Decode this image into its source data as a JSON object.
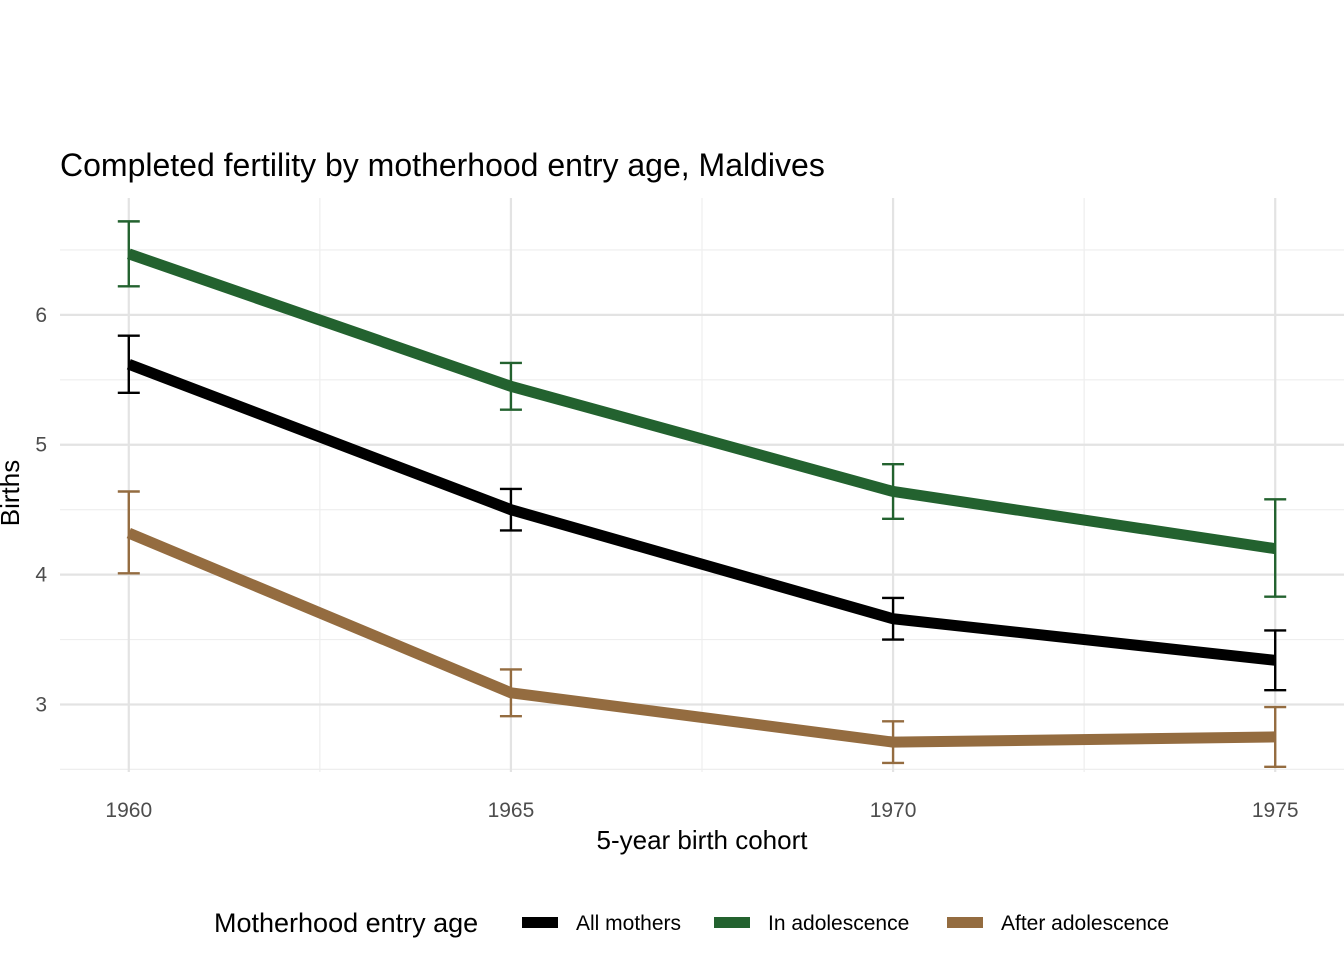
{
  "chart_data": {
    "type": "line",
    "title": "Completed fertility by motherhood entry age,  Maldives",
    "xlabel": "5-year birth cohort",
    "ylabel": "Births",
    "x": [
      1960,
      1965,
      1970,
      1975
    ],
    "x_ticks": [
      "1960",
      "1965",
      "1970",
      "1975"
    ],
    "y_ticks": [
      "3",
      "4",
      "5",
      "6"
    ],
    "xlim": [
      1959.1,
      1975.9
    ],
    "ylim": [
      2.48,
      6.9
    ],
    "grid": true,
    "legend": {
      "title": "Motherhood entry age",
      "position": "bottom"
    },
    "series": [
      {
        "name": "All mothers",
        "color": "#000000",
        "values": [
          5.62,
          4.5,
          3.66,
          3.34
        ],
        "lower": [
          5.4,
          4.34,
          3.5,
          3.11
        ],
        "upper": [
          5.84,
          4.66,
          3.82,
          3.57
        ]
      },
      {
        "name": "In adolescence",
        "color": "#23622f",
        "values": [
          6.47,
          5.45,
          4.64,
          4.2
        ],
        "lower": [
          6.22,
          5.27,
          4.43,
          3.83
        ],
        "upper": [
          6.72,
          5.63,
          4.85,
          4.58
        ]
      },
      {
        "name": "After adolescence",
        "color": "#946c40",
        "values": [
          4.32,
          3.09,
          2.71,
          2.75
        ],
        "lower": [
          4.01,
          2.91,
          2.55,
          2.52
        ],
        "upper": [
          4.64,
          3.27,
          2.87,
          2.98
        ]
      }
    ]
  }
}
